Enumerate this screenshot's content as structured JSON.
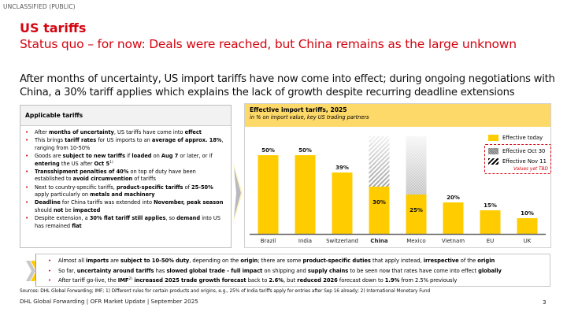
{
  "classification": "UNCLASSIFIED (PUBLIC)",
  "header": {
    "title": "US tariffs",
    "subtitle": "Status quo – for now: Deals were reached, but China remains as the large unknown"
  },
  "intro": "After months of uncertainty, US import tariffs have now come into effect; during ongoing negotiations with China, a 30% tariff applies which explains the lack of growth despite recurring deadline extensions",
  "left_panel": {
    "title": "Applicable tariffs",
    "bullets": [
      [
        {
          "t": "After "
        },
        {
          "t": "months of uncertainty",
          "b": true
        },
        {
          "t": ", US tariffs have come into "
        },
        {
          "t": "effect",
          "b": true
        }
      ],
      [
        {
          "t": "This brings "
        },
        {
          "t": "tariff rates",
          "b": true
        },
        {
          "t": " for US imports to an "
        },
        {
          "t": "average of approx. 18%",
          "b": true
        },
        {
          "t": ", ranging from 10-50%"
        }
      ],
      [
        {
          "t": "Goods are "
        },
        {
          "t": "subject to new tariffs",
          "b": true
        },
        {
          "t": " if "
        },
        {
          "t": "loaded",
          "b": true
        },
        {
          "t": " on "
        },
        {
          "t": "Aug 7",
          "b": true
        },
        {
          "t": " or later, or if "
        },
        {
          "t": "entering",
          "b": true
        },
        {
          "t": " the US after "
        },
        {
          "t": "Oct 5",
          "b": true
        },
        {
          "t": "1)",
          "sup": true
        }
      ],
      [
        {
          "t": "Transshipment penalties of 40%",
          "b": true
        },
        {
          "t": " on top of duty have been established to "
        },
        {
          "t": "avoid circumvention",
          "b": true
        },
        {
          "t": " of tariffs"
        }
      ],
      [
        {
          "t": "Next to country-specific tariffs, "
        },
        {
          "t": "product-specific tariffs",
          "b": true
        },
        {
          "t": " of "
        },
        {
          "t": "25-50%",
          "b": true
        },
        {
          "t": " apply particularly on "
        },
        {
          "t": "metals and machinery",
          "b": true
        }
      ],
      [
        {
          "t": "Deadline",
          "b": true
        },
        {
          "t": " for China tariffs was extended into "
        },
        {
          "t": "November, peak season",
          "b": true
        },
        {
          "t": " should "
        },
        {
          "t": "not",
          "b": true
        },
        {
          "t": " be "
        },
        {
          "t": "impacted",
          "b": true
        }
      ],
      [
        {
          "t": "Despite extension, a "
        },
        {
          "t": "30% flat tariff still applies",
          "b": true
        },
        {
          "t": ", so "
        },
        {
          "t": "demand",
          "b": true
        },
        {
          "t": " into US has remained "
        },
        {
          "t": "flat",
          "b": true
        }
      ]
    ]
  },
  "chart_panel": {
    "title": "Effective import tariffs, 2025",
    "subtitle": "in % on import value, key US trading partners",
    "legend": {
      "today": "Effective today",
      "oct": "Effective Oct 30",
      "nov": "Effective Nov 11",
      "tbd": "Values yet TBD"
    }
  },
  "chart_data": {
    "type": "bar",
    "title": "Effective import tariffs, 2025",
    "subtitle": "in % on import value, key US trading partners",
    "categories": [
      "Brazil",
      "India",
      "Switzerland",
      "China",
      "Mexico",
      "Vietnam",
      "EU",
      "UK"
    ],
    "highlight_category": "China",
    "unit": "%",
    "series": [
      {
        "name": "Effective today",
        "values": [
          50,
          50,
          39,
          30,
          25,
          20,
          15,
          10
        ],
        "color": "#ffcc00"
      },
      {
        "name": "Effective Oct 30",
        "values": [
          null,
          null,
          null,
          null,
          "TBD",
          null,
          null,
          null
        ],
        "pattern": "grey-checker-fade"
      },
      {
        "name": "Effective Nov 11",
        "values": [
          null,
          null,
          null,
          "TBD",
          null,
          null,
          null,
          null
        ],
        "pattern": "black-diagonal-fade"
      }
    ],
    "data_labels": [
      "50%",
      "50%",
      "39%",
      "30%",
      "25%",
      "20%",
      "15%",
      "10%"
    ],
    "ylim": [
      0,
      80
    ],
    "legend_position": "top-right",
    "grid": false,
    "xlabel": "",
    "ylabel": ""
  },
  "summary": {
    "bullets": [
      [
        {
          "t": "Almost all "
        },
        {
          "t": "imports",
          "b": true
        },
        {
          "t": " are "
        },
        {
          "t": "subject to 10-50% duty",
          "b": true
        },
        {
          "t": ", depending on the "
        },
        {
          "t": "origin",
          "b": true
        },
        {
          "t": "; there are some "
        },
        {
          "t": "product-specific duties",
          "b": true
        },
        {
          "t": " that apply instead, "
        },
        {
          "t": "irrespective",
          "b": true
        },
        {
          "t": " of the "
        },
        {
          "t": "origin",
          "b": true
        }
      ],
      [
        {
          "t": "So far, "
        },
        {
          "t": "uncertainty around tariffs",
          "b": true
        },
        {
          "t": " has "
        },
        {
          "t": "slowed global trade - full impact",
          "b": true
        },
        {
          "t": " on shipping and "
        },
        {
          "t": "supply chains",
          "b": true
        },
        {
          "t": " to be seen now that rates have come into effect "
        },
        {
          "t": "globally",
          "b": true
        }
      ],
      [
        {
          "t": "After tariff go-live, the "
        },
        {
          "t": "IMF",
          "b": true
        },
        {
          "t": "2)",
          "sup": true
        },
        {
          "t": " increased 2025 trade growth forecast",
          "b": true
        },
        {
          "t": " back to "
        },
        {
          "t": "2.6%",
          "b": true
        },
        {
          "t": ", but "
        },
        {
          "t": "reduced 2026",
          "b": true
        },
        {
          "t": " forecast down to "
        },
        {
          "t": "1.9%",
          "b": true
        },
        {
          "t": " from 2.5% previously"
        }
      ]
    ]
  },
  "sources": "Sources: DHL Global Forwarding; IMF; 1) Different rules for certain products and origins, e.g., 25% of India tariffs apply for entries after Sep 16 already; 2) International Monetary Fund",
  "footer": "DHL Global Forwarding | OFR Market Update | September 2025",
  "page_number": "3",
  "colors": {
    "brand_red": "#d40511",
    "brand_yellow": "#ffcc00",
    "header_yellow": "#fdd96a"
  }
}
